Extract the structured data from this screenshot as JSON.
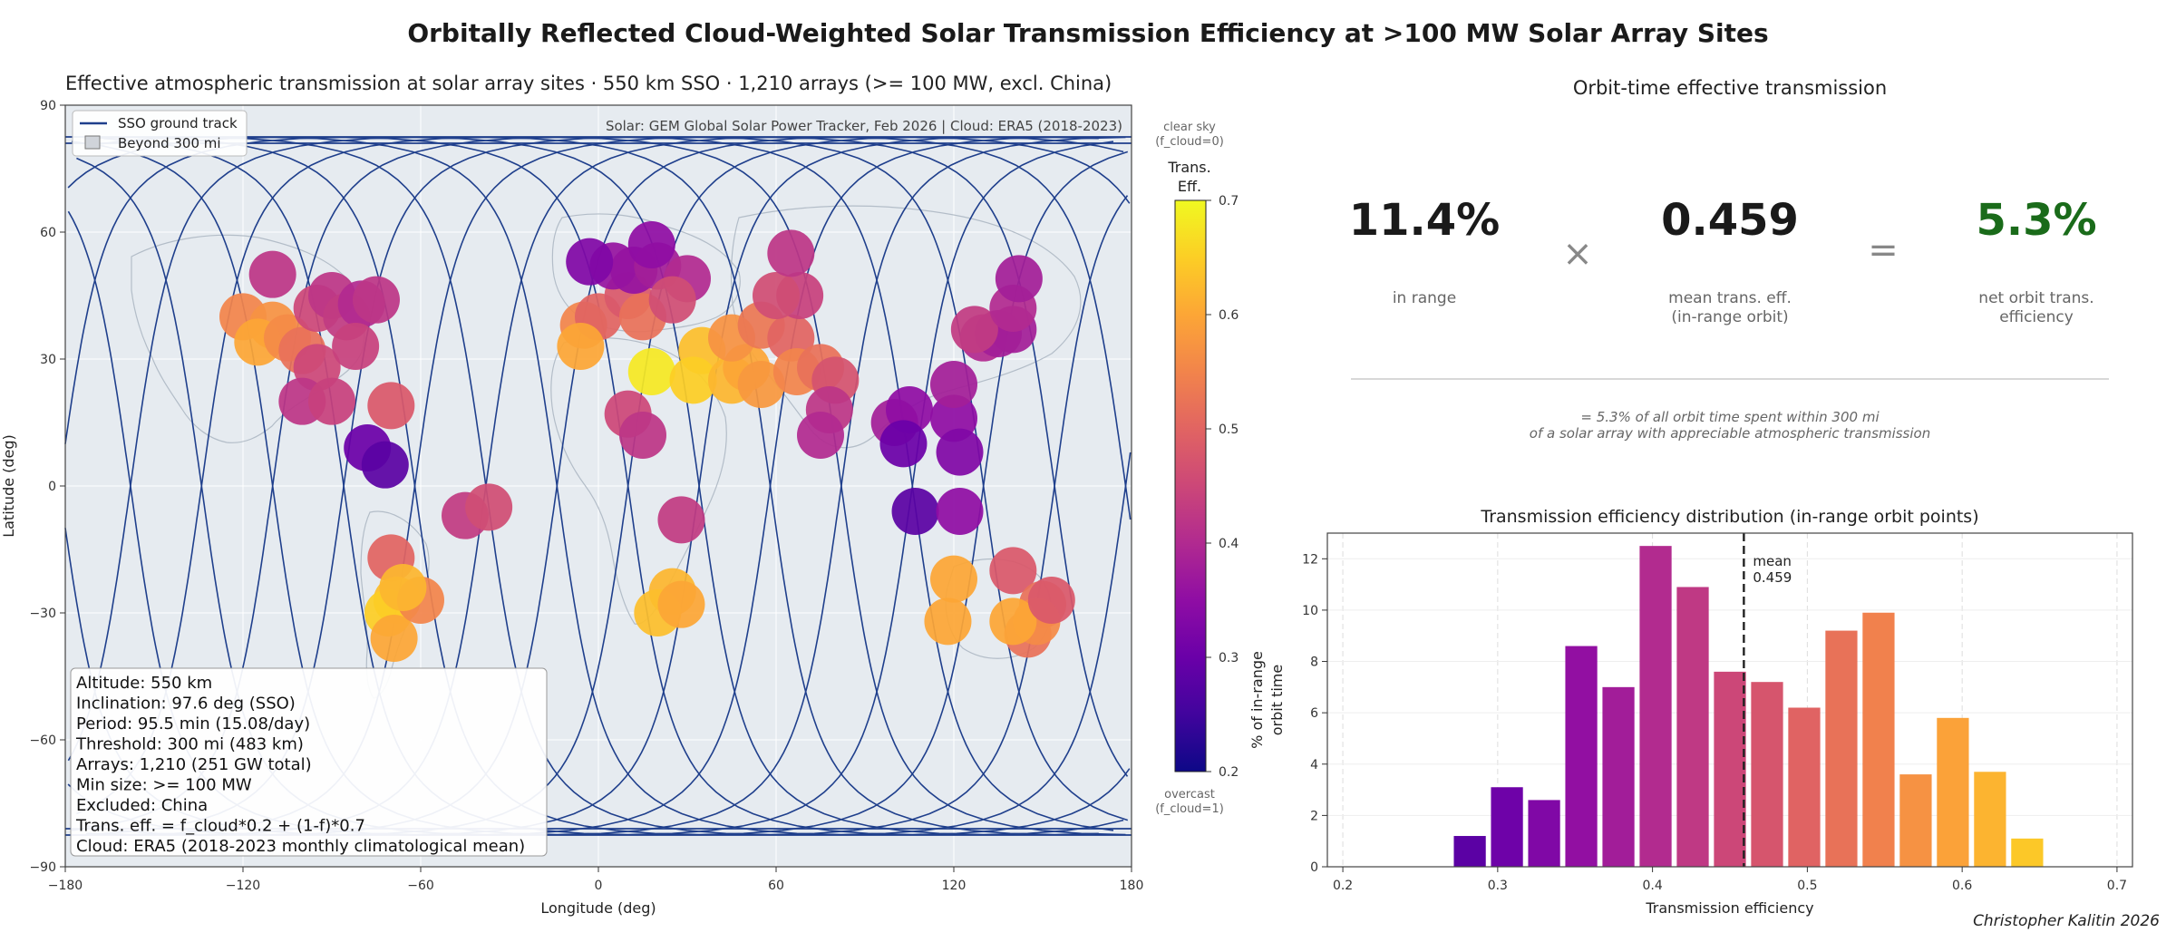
{
  "figure": {
    "title": "Orbitally Reflected Cloud-Weighted Solar Transmission Efficiency at >100 MW Solar Array Sites",
    "credit": "Christopher Kalitin 2026"
  },
  "map": {
    "title": "Effective atmospheric transmission at solar array sites  ·  550 km SSO  ·  1,210 arrays (>= 100 MW, excl. China)",
    "source": "Solar: GEM Global Solar Power Tracker, Feb 2026  |  Cloud: ERA5 (2018-2023)",
    "xlabel": "Longitude (deg)",
    "ylabel": "Latitude (deg)",
    "xlim": [
      -180,
      180
    ],
    "ylim": [
      -90,
      90
    ],
    "xticks": [
      -180,
      -120,
      -60,
      0,
      60,
      120,
      180
    ],
    "yticks": [
      -90,
      -60,
      -30,
      0,
      30,
      60,
      90
    ],
    "xtick_labels": [
      "−180",
      "−120",
      "−60",
      "0",
      "60",
      "120",
      "180"
    ],
    "ytick_labels": [
      "−90",
      "−60",
      "−30",
      "0",
      "30",
      "60",
      "90"
    ],
    "legend": {
      "placement": "top-left",
      "items": [
        {
          "label": "SSO ground track",
          "color": "#1f3f8c"
        },
        {
          "label": "Beyond 300 mi",
          "color": "#d0d4da"
        }
      ]
    },
    "info_box": [
      "Altitude: 550 km",
      "Inclination: 97.6 deg (SSO)",
      "Period: 95.5 min  (15.08/day)",
      "Threshold: 300 mi  (483 km)",
      "Arrays: 1,210  (251 GW total)",
      "Min size: >= 100 MW",
      "Excluded: China",
      "Trans. eff. = f_cloud*0.2 + (1-f)*0.7",
      "Cloud: ERA5 (2018-2023 monthly climatological mean)"
    ],
    "ground_track": {
      "color": "#1f3f8c",
      "inclination_deg": 97.6,
      "orbits_shown": 15
    },
    "sites": [
      {
        "lon": -120,
        "lat": 40,
        "eff": 0.55
      },
      {
        "lon": -110,
        "lat": 38,
        "eff": 0.57
      },
      {
        "lon": -115,
        "lat": 34,
        "eff": 0.6
      },
      {
        "lon": -105,
        "lat": 35,
        "eff": 0.56
      },
      {
        "lon": -100,
        "lat": 32,
        "eff": 0.52
      },
      {
        "lon": -110,
        "lat": 50,
        "eff": 0.42
      },
      {
        "lon": -95,
        "lat": 42,
        "eff": 0.45
      },
      {
        "lon": -90,
        "lat": 45,
        "eff": 0.42
      },
      {
        "lon": -85,
        "lat": 40,
        "eff": 0.43
      },
      {
        "lon": -80,
        "lat": 43,
        "eff": 0.4
      },
      {
        "lon": -75,
        "lat": 44,
        "eff": 0.42
      },
      {
        "lon": -95,
        "lat": 28,
        "eff": 0.45
      },
      {
        "lon": -82,
        "lat": 33,
        "eff": 0.44
      },
      {
        "lon": -100,
        "lat": 20,
        "eff": 0.42
      },
      {
        "lon": -90,
        "lat": 20,
        "eff": 0.44
      },
      {
        "lon": -70,
        "lat": 19,
        "eff": 0.48
      },
      {
        "lon": -78,
        "lat": 9,
        "eff": 0.3
      },
      {
        "lon": -72,
        "lat": 5,
        "eff": 0.28
      },
      {
        "lon": -45,
        "lat": -7,
        "eff": 0.43
      },
      {
        "lon": -37,
        "lat": -5,
        "eff": 0.46
      },
      {
        "lon": -70,
        "lat": -17,
        "eff": 0.5
      },
      {
        "lon": -68,
        "lat": -27,
        "eff": 0.63
      },
      {
        "lon": -71,
        "lat": -30,
        "eff": 0.65
      },
      {
        "lon": -69,
        "lat": -36,
        "eff": 0.6
      },
      {
        "lon": -60,
        "lat": -27,
        "eff": 0.55
      },
      {
        "lon": -66,
        "lat": -24,
        "eff": 0.62
      },
      {
        "lon": -5,
        "lat": 38,
        "eff": 0.55
      },
      {
        "lon": 0,
        "lat": 40,
        "eff": 0.5
      },
      {
        "lon": 10,
        "lat": 45,
        "eff": 0.48
      },
      {
        "lon": 15,
        "lat": 40,
        "eff": 0.52
      },
      {
        "lon": 5,
        "lat": 52,
        "eff": 0.36
      },
      {
        "lon": 12,
        "lat": 51,
        "eff": 0.36
      },
      {
        "lon": 20,
        "lat": 52,
        "eff": 0.38
      },
      {
        "lon": 30,
        "lat": 49,
        "eff": 0.4
      },
      {
        "lon": 25,
        "lat": 44,
        "eff": 0.46
      },
      {
        "lon": -3,
        "lat": 53,
        "eff": 0.33
      },
      {
        "lon": 18,
        "lat": 57,
        "eff": 0.35
      },
      {
        "lon": 35,
        "lat": 32,
        "eff": 0.63
      },
      {
        "lon": 18,
        "lat": 27,
        "eff": 0.68
      },
      {
        "lon": 32,
        "lat": 25,
        "eff": 0.65
      },
      {
        "lon": 45,
        "lat": 25,
        "eff": 0.62
      },
      {
        "lon": 50,
        "lat": 28,
        "eff": 0.6
      },
      {
        "lon": 55,
        "lat": 24,
        "eff": 0.58
      },
      {
        "lon": 45,
        "lat": 35,
        "eff": 0.57
      },
      {
        "lon": 55,
        "lat": 38,
        "eff": 0.53
      },
      {
        "lon": 65,
        "lat": 35,
        "eff": 0.5
      },
      {
        "lon": 67,
        "lat": 27,
        "eff": 0.55
      },
      {
        "lon": 75,
        "lat": 28,
        "eff": 0.52
      },
      {
        "lon": 80,
        "lat": 25,
        "eff": 0.47
      },
      {
        "lon": 78,
        "lat": 18,
        "eff": 0.42
      },
      {
        "lon": 75,
        "lat": 12,
        "eff": 0.4
      },
      {
        "lon": 68,
        "lat": 45,
        "eff": 0.44
      },
      {
        "lon": 60,
        "lat": 45,
        "eff": 0.46
      },
      {
        "lon": 65,
        "lat": 55,
        "eff": 0.42
      },
      {
        "lon": 100,
        "lat": 15,
        "eff": 0.38
      },
      {
        "lon": 105,
        "lat": 18,
        "eff": 0.35
      },
      {
        "lon": 103,
        "lat": 10,
        "eff": 0.3
      },
      {
        "lon": 107,
        "lat": -6,
        "eff": 0.28
      },
      {
        "lon": 120,
        "lat": 16,
        "eff": 0.35
      },
      {
        "lon": 122,
        "lat": 8,
        "eff": 0.33
      },
      {
        "lon": 122,
        "lat": -6,
        "eff": 0.35
      },
      {
        "lon": 130,
        "lat": 35,
        "eff": 0.4
      },
      {
        "lon": 135,
        "lat": 36,
        "eff": 0.38
      },
      {
        "lon": 140,
        "lat": 37,
        "eff": 0.38
      },
      {
        "lon": 127,
        "lat": 37,
        "eff": 0.43
      },
      {
        "lon": 120,
        "lat": 24,
        "eff": 0.38
      },
      {
        "lon": 140,
        "lat": 42,
        "eff": 0.4
      },
      {
        "lon": 142,
        "lat": 49,
        "eff": 0.38
      },
      {
        "lon": 10,
        "lat": 17,
        "eff": 0.45
      },
      {
        "lon": 15,
        "lat": 12,
        "eff": 0.42
      },
      {
        "lon": 28,
        "lat": -8,
        "eff": 0.43
      },
      {
        "lon": 25,
        "lat": -25,
        "eff": 0.62
      },
      {
        "lon": 20,
        "lat": -30,
        "eff": 0.63
      },
      {
        "lon": 28,
        "lat": -28,
        "eff": 0.6
      },
      {
        "lon": -6,
        "lat": 33,
        "eff": 0.6
      },
      {
        "lon": 120,
        "lat": -22,
        "eff": 0.6
      },
      {
        "lon": 118,
        "lat": -32,
        "eff": 0.6
      },
      {
        "lon": 140,
        "lat": -20,
        "eff": 0.48
      },
      {
        "lon": 145,
        "lat": -35,
        "eff": 0.52
      },
      {
        "lon": 150,
        "lat": -28,
        "eff": 0.52
      },
      {
        "lon": 148,
        "lat": -32,
        "eff": 0.56
      },
      {
        "lon": 140,
        "lat": -32,
        "eff": 0.6
      },
      {
        "lon": 153,
        "lat": -27,
        "eff": 0.48
      }
    ]
  },
  "colorbar": {
    "title_line1": "Trans.",
    "title_line2": "Eff.",
    "top_note_line1": "clear sky",
    "top_note_line2": "(f_cloud=0)",
    "bottom_note_line1": "overcast",
    "bottom_note_line2": "(f_cloud=1)",
    "range": [
      0.2,
      0.7
    ],
    "ticks": [
      "0.2",
      "0.3",
      "0.4",
      "0.5",
      "0.6",
      "0.7"
    ],
    "colormap": "plasma"
  },
  "summary": {
    "title": "Orbit-time effective transmission",
    "in_range_value": "11.4%",
    "in_range_label": "in range",
    "operator_multiply": "×",
    "mean_value": "0.459",
    "mean_label_line1": "mean trans. eff.",
    "mean_label_line2": "(in-range orbit)",
    "operator_equals": "=",
    "net_value": "5.3%",
    "net_label_line1": "net orbit trans.",
    "net_label_line2": "efficiency",
    "net_color": "#1a6b1a",
    "note_line1": "= 5.3% of all orbit time spent within 300 mi",
    "note_line2": "of a solar array with appreciable atmospheric transmission"
  },
  "chart_data": {
    "type": "bar",
    "title": "Transmission efficiency distribution (in-range orbit points)",
    "xlabel": "Transmission efficiency",
    "ylabel_line1": "% of in-range",
    "ylabel_line2": "orbit time",
    "xlim": [
      0.19,
      0.71
    ],
    "ylim": [
      0,
      13
    ],
    "xticks": [
      "0.2",
      "0.3",
      "0.4",
      "0.5",
      "0.6",
      "0.7"
    ],
    "yticks": [
      "0",
      "2",
      "4",
      "6",
      "8",
      "10",
      "12"
    ],
    "bin_width": 0.024,
    "x": [
      0.282,
      0.306,
      0.33,
      0.354,
      0.378,
      0.402,
      0.426,
      0.45,
      0.474,
      0.498,
      0.522,
      0.546,
      0.57,
      0.594,
      0.618,
      0.642
    ],
    "values": [
      1.2,
      3.1,
      2.6,
      8.6,
      7.0,
      12.5,
      10.9,
      7.6,
      7.2,
      6.2,
      9.2,
      9.9,
      3.6,
      5.8,
      3.7,
      1.1
    ],
    "mean": 0.459,
    "mean_label_line1": "mean",
    "mean_label_line2": "0.459",
    "grid": true
  }
}
